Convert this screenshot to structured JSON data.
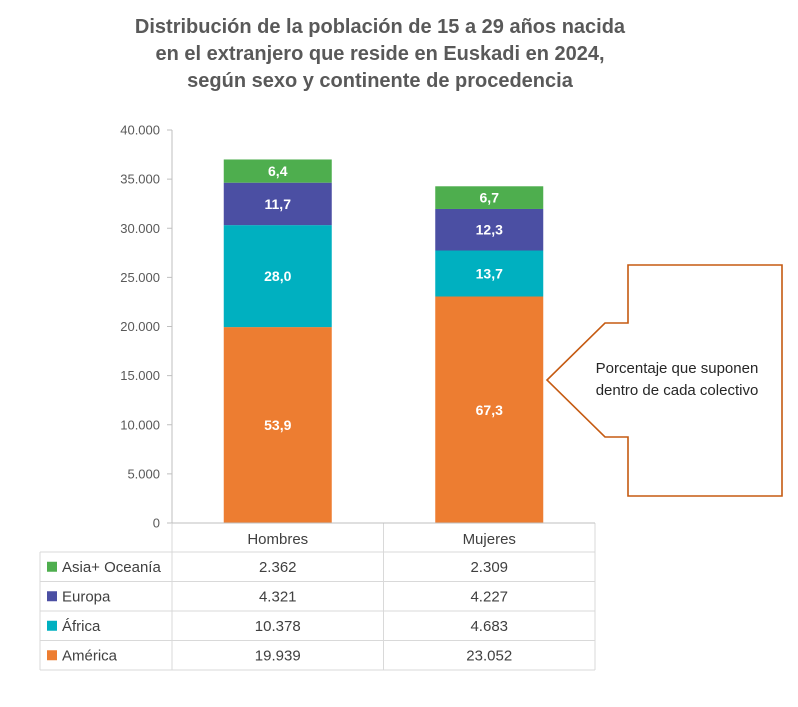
{
  "chart_data": {
    "type": "bar",
    "stacked": true,
    "title": "Distribución de la población de 15 a 29 años nacida en el extranjero que reside en Euskadi en 2024, según sexo y continente de procedencia",
    "title_lines": [
      "Distribución de la población de 15 a 29 años nacida",
      "en el extranjero que reside en Euskadi en 2024,",
      "según sexo y continente de procedencia"
    ],
    "categories": [
      "Hombres",
      "Mujeres"
    ],
    "ylim": [
      0,
      40000
    ],
    "yticks": [
      0,
      5000,
      10000,
      15000,
      20000,
      25000,
      30000,
      35000,
      40000
    ],
    "ytick_labels": [
      "0",
      "5.000",
      "10.000",
      "15.000",
      "20.000",
      "25.000",
      "30.000",
      "35.000",
      "40.000"
    ],
    "series": [
      {
        "name": "América",
        "color": "#ED7D31",
        "values": [
          19939,
          23052
        ],
        "value_labels": [
          "19.939",
          "23.052"
        ],
        "percent_labels": [
          "53,9",
          "67,3"
        ]
      },
      {
        "name": "África",
        "color": "#00B0C0",
        "values": [
          10378,
          4683
        ],
        "value_labels": [
          "10.378",
          "4.683"
        ],
        "percent_labels": [
          "28,0",
          "13,7"
        ]
      },
      {
        "name": "Europa",
        "color": "#4B4FA3",
        "values": [
          4321,
          4227
        ],
        "value_labels": [
          "4.321",
          "4.227"
        ],
        "percent_labels": [
          "11,7",
          "12,3"
        ]
      },
      {
        "name": "Asia+ Oceanía",
        "color": "#4EAE4E",
        "values": [
          2362,
          2309
        ],
        "value_labels": [
          "2.362",
          "2.309"
        ],
        "percent_labels": [
          "6,4",
          "6,7"
        ]
      }
    ],
    "legend_order": [
      "Asia+ Oceanía",
      "Europa",
      "África",
      "América"
    ],
    "data_table": true,
    "grid": false,
    "callout": {
      "lines": [
        "Porcentaje que suponen",
        "dentro de cada colectivo"
      ],
      "border_color": "#C55A11"
    }
  }
}
